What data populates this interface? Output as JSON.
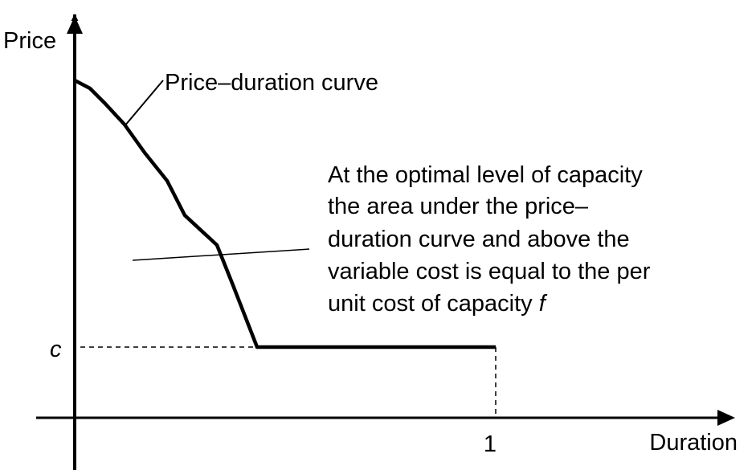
{
  "axes": {
    "y_label": "Price",
    "x_label": "Duration",
    "y_tick": "c",
    "x_tick": "1"
  },
  "curve_label": "Price–duration curve",
  "annotation": {
    "lines": [
      "At the optimal level of capacity",
      "the area under the price–",
      "duration curve and above the",
      "variable cost is equal to the per",
      "unit cost of capacity "
    ],
    "symbol": "f"
  }
}
